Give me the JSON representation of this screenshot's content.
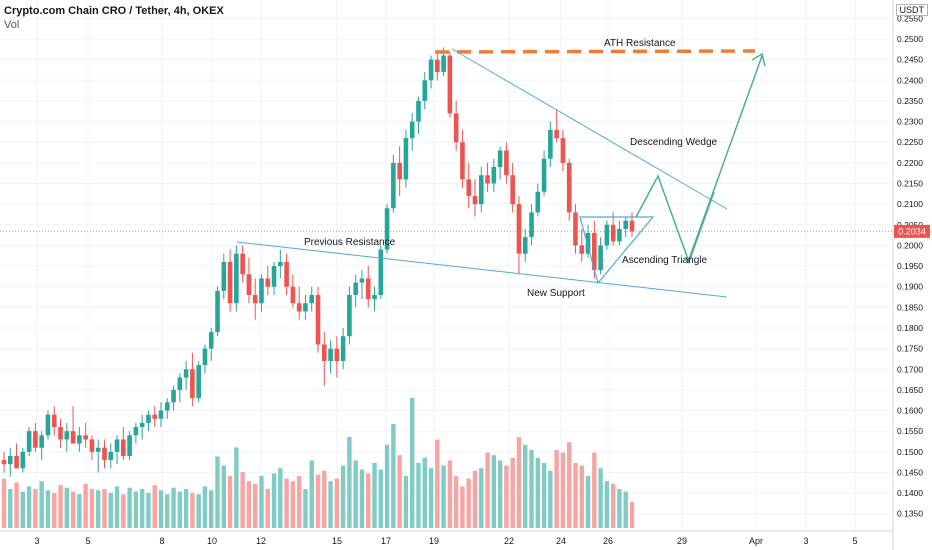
{
  "header": {
    "title": "Crypto.com Chain CRO / Tether, 4h, OKEX",
    "volume_label": "Vol"
  },
  "price_scale": {
    "currency": "USDT",
    "ticks": [
      "0.2550",
      "0.2500",
      "0.2450",
      "0.2400",
      "0.2350",
      "0.2300",
      "0.2250",
      "0.2200",
      "0.2150",
      "0.2100",
      "0.2050",
      "0.2000",
      "0.1950",
      "0.1900",
      "0.1850",
      "0.1800",
      "0.1750",
      "0.1700",
      "0.1650",
      "0.1600",
      "0.1550",
      "0.1500",
      "0.1450",
      "0.1400",
      "0.1350"
    ],
    "current_price": "0.2034"
  },
  "time_axis": {
    "labels": [
      "3",
      "5",
      "8",
      "10",
      "12",
      "15",
      "17",
      "19",
      "22",
      "24",
      "26",
      "29",
      "Apr",
      "3",
      "5"
    ]
  },
  "annotations": {
    "ath": "ATH Resistance",
    "wedge": "Descending Wedge",
    "prev_res": "Previous Resistance",
    "triangle": "Ascending Triangle",
    "support": "New Support"
  },
  "colors": {
    "up": "#26a69a",
    "down": "#ef5350",
    "vol_up": "#80cbc4",
    "vol_down": "#f7a5a3",
    "trendline": "#4fa9d8",
    "ath_line": "#f07c3a",
    "projection": "#4caf93",
    "price_badge": "#ef5350"
  },
  "chart_data": {
    "type": "candlestick",
    "symbol": "CRO/USDT",
    "interval": "4h",
    "ylim": [
      0.133,
      0.258
    ],
    "candles": [
      [
        0.148,
        0.15,
        0.145,
        0.147
      ],
      [
        0.147,
        0.151,
        0.144,
        0.149
      ],
      [
        0.149,
        0.152,
        0.146,
        0.146
      ],
      [
        0.146,
        0.151,
        0.145,
        0.15
      ],
      [
        0.15,
        0.156,
        0.149,
        0.155
      ],
      [
        0.155,
        0.157,
        0.15,
        0.151
      ],
      [
        0.151,
        0.155,
        0.148,
        0.154
      ],
      [
        0.154,
        0.16,
        0.153,
        0.159
      ],
      [
        0.159,
        0.161,
        0.154,
        0.156
      ],
      [
        0.156,
        0.158,
        0.151,
        0.153
      ],
      [
        0.153,
        0.157,
        0.15,
        0.155
      ],
      [
        0.155,
        0.161,
        0.153,
        0.152
      ],
      [
        0.152,
        0.156,
        0.15,
        0.154
      ],
      [
        0.154,
        0.157,
        0.151,
        0.153
      ],
      [
        0.153,
        0.154,
        0.148,
        0.15
      ],
      [
        0.15,
        0.153,
        0.145,
        0.151
      ],
      [
        0.151,
        0.153,
        0.146,
        0.148
      ],
      [
        0.148,
        0.152,
        0.146,
        0.15
      ],
      [
        0.15,
        0.154,
        0.147,
        0.153
      ],
      [
        0.153,
        0.156,
        0.148,
        0.149
      ],
      [
        0.149,
        0.155,
        0.148,
        0.154
      ],
      [
        0.154,
        0.157,
        0.152,
        0.156
      ],
      [
        0.156,
        0.159,
        0.153,
        0.157
      ],
      [
        0.157,
        0.16,
        0.155,
        0.159
      ],
      [
        0.159,
        0.161,
        0.156,
        0.158
      ],
      [
        0.158,
        0.162,
        0.156,
        0.16
      ],
      [
        0.16,
        0.163,
        0.158,
        0.162
      ],
      [
        0.162,
        0.166,
        0.16,
        0.165
      ],
      [
        0.165,
        0.169,
        0.162,
        0.168
      ],
      [
        0.168,
        0.172,
        0.165,
        0.17
      ],
      [
        0.17,
        0.174,
        0.161,
        0.163
      ],
      [
        0.163,
        0.172,
        0.162,
        0.171
      ],
      [
        0.171,
        0.176,
        0.169,
        0.175
      ],
      [
        0.175,
        0.18,
        0.172,
        0.179
      ],
      [
        0.179,
        0.19,
        0.178,
        0.189
      ],
      [
        0.189,
        0.198,
        0.187,
        0.196
      ],
      [
        0.196,
        0.199,
        0.184,
        0.186
      ],
      [
        0.186,
        0.2,
        0.184,
        0.198
      ],
      [
        0.198,
        0.2,
        0.191,
        0.193
      ],
      [
        0.193,
        0.197,
        0.186,
        0.188
      ],
      [
        0.188,
        0.192,
        0.182,
        0.186
      ],
      [
        0.186,
        0.193,
        0.184,
        0.192
      ],
      [
        0.192,
        0.195,
        0.188,
        0.19
      ],
      [
        0.19,
        0.196,
        0.188,
        0.195
      ],
      [
        0.195,
        0.199,
        0.192,
        0.196
      ],
      [
        0.196,
        0.198,
        0.188,
        0.19
      ],
      [
        0.19,
        0.193,
        0.185,
        0.186
      ],
      [
        0.186,
        0.19,
        0.182,
        0.184
      ],
      [
        0.184,
        0.188,
        0.182,
        0.186
      ],
      [
        0.186,
        0.19,
        0.184,
        0.188
      ],
      [
        0.188,
        0.19,
        0.174,
        0.176
      ],
      [
        0.176,
        0.179,
        0.166,
        0.172
      ],
      [
        0.172,
        0.177,
        0.169,
        0.175
      ],
      [
        0.175,
        0.178,
        0.168,
        0.172
      ],
      [
        0.172,
        0.18,
        0.17,
        0.178
      ],
      [
        0.178,
        0.19,
        0.176,
        0.188
      ],
      [
        0.188,
        0.193,
        0.185,
        0.191
      ],
      [
        0.191,
        0.194,
        0.187,
        0.192
      ],
      [
        0.192,
        0.195,
        0.185,
        0.187
      ],
      [
        0.187,
        0.19,
        0.184,
        0.188
      ],
      [
        0.188,
        0.2,
        0.187,
        0.199
      ],
      [
        0.199,
        0.21,
        0.198,
        0.209
      ],
      [
        0.209,
        0.222,
        0.208,
        0.22
      ],
      [
        0.22,
        0.224,
        0.212,
        0.216
      ],
      [
        0.216,
        0.228,
        0.214,
        0.226
      ],
      [
        0.226,
        0.232,
        0.223,
        0.23
      ],
      [
        0.23,
        0.236,
        0.227,
        0.235
      ],
      [
        0.235,
        0.242,
        0.233,
        0.24
      ],
      [
        0.24,
        0.246,
        0.238,
        0.245
      ],
      [
        0.245,
        0.247,
        0.24,
        0.242
      ],
      [
        0.242,
        0.248,
        0.241,
        0.246
      ],
      [
        0.246,
        0.247,
        0.231,
        0.232
      ],
      [
        0.232,
        0.235,
        0.223,
        0.225
      ],
      [
        0.225,
        0.228,
        0.214,
        0.216
      ],
      [
        0.216,
        0.22,
        0.209,
        0.212
      ],
      [
        0.212,
        0.216,
        0.207,
        0.21
      ],
      [
        0.21,
        0.219,
        0.208,
        0.217
      ],
      [
        0.217,
        0.22,
        0.213,
        0.215
      ],
      [
        0.215,
        0.221,
        0.213,
        0.219
      ],
      [
        0.219,
        0.224,
        0.216,
        0.223
      ],
      [
        0.223,
        0.225,
        0.215,
        0.217
      ],
      [
        0.217,
        0.22,
        0.208,
        0.21
      ],
      [
        0.21,
        0.212,
        0.193,
        0.198
      ],
      [
        0.198,
        0.204,
        0.196,
        0.202
      ],
      [
        0.202,
        0.21,
        0.2,
        0.208
      ],
      [
        0.208,
        0.215,
        0.207,
        0.213
      ],
      [
        0.213,
        0.223,
        0.212,
        0.221
      ],
      [
        0.221,
        0.23,
        0.219,
        0.228
      ],
      [
        0.228,
        0.233,
        0.225,
        0.226
      ],
      [
        0.226,
        0.228,
        0.218,
        0.22
      ],
      [
        0.22,
        0.221,
        0.206,
        0.208
      ],
      [
        0.208,
        0.21,
        0.198,
        0.2
      ],
      [
        0.2,
        0.204,
        0.196,
        0.198
      ],
      [
        0.198,
        0.205,
        0.197,
        0.203
      ],
      [
        0.203,
        0.206,
        0.192,
        0.194
      ],
      [
        0.194,
        0.202,
        0.193,
        0.2
      ],
      [
        0.2,
        0.206,
        0.199,
        0.205
      ],
      [
        0.205,
        0.208,
        0.2,
        0.201
      ],
      [
        0.201,
        0.206,
        0.2,
        0.204
      ],
      [
        0.204,
        0.207,
        0.202,
        0.206
      ],
      [
        0.206,
        0.208,
        0.202,
        0.2034
      ]
    ],
    "volume": [
      0.38,
      0.3,
      0.35,
      0.28,
      0.32,
      0.3,
      0.36,
      0.29,
      0.27,
      0.33,
      0.31,
      0.28,
      0.26,
      0.34,
      0.3,
      0.29,
      0.3,
      0.27,
      0.32,
      0.26,
      0.31,
      0.28,
      0.3,
      0.27,
      0.33,
      0.29,
      0.26,
      0.31,
      0.28,
      0.3,
      0.27,
      0.26,
      0.32,
      0.29,
      0.55,
      0.48,
      0.4,
      0.62,
      0.43,
      0.36,
      0.34,
      0.4,
      0.3,
      0.42,
      0.46,
      0.38,
      0.36,
      0.4,
      0.3,
      0.52,
      0.41,
      0.44,
      0.36,
      0.38,
      0.48,
      0.7,
      0.52,
      0.45,
      0.42,
      0.5,
      0.45,
      0.64,
      0.8,
      0.56,
      0.4,
      1.0,
      0.5,
      0.54,
      0.46,
      0.68,
      0.48,
      0.52,
      0.4,
      0.32,
      0.38,
      0.44,
      0.46,
      0.58,
      0.56,
      0.52,
      0.48,
      0.54,
      0.7,
      0.64,
      0.6,
      0.54,
      0.5,
      0.44,
      0.6,
      0.58,
      0.66,
      0.5,
      0.48,
      0.4,
      0.58,
      0.46,
      0.36,
      0.34,
      0.3,
      0.28,
      0.2
    ],
    "price_lines": {
      "current": 0.2034
    }
  }
}
